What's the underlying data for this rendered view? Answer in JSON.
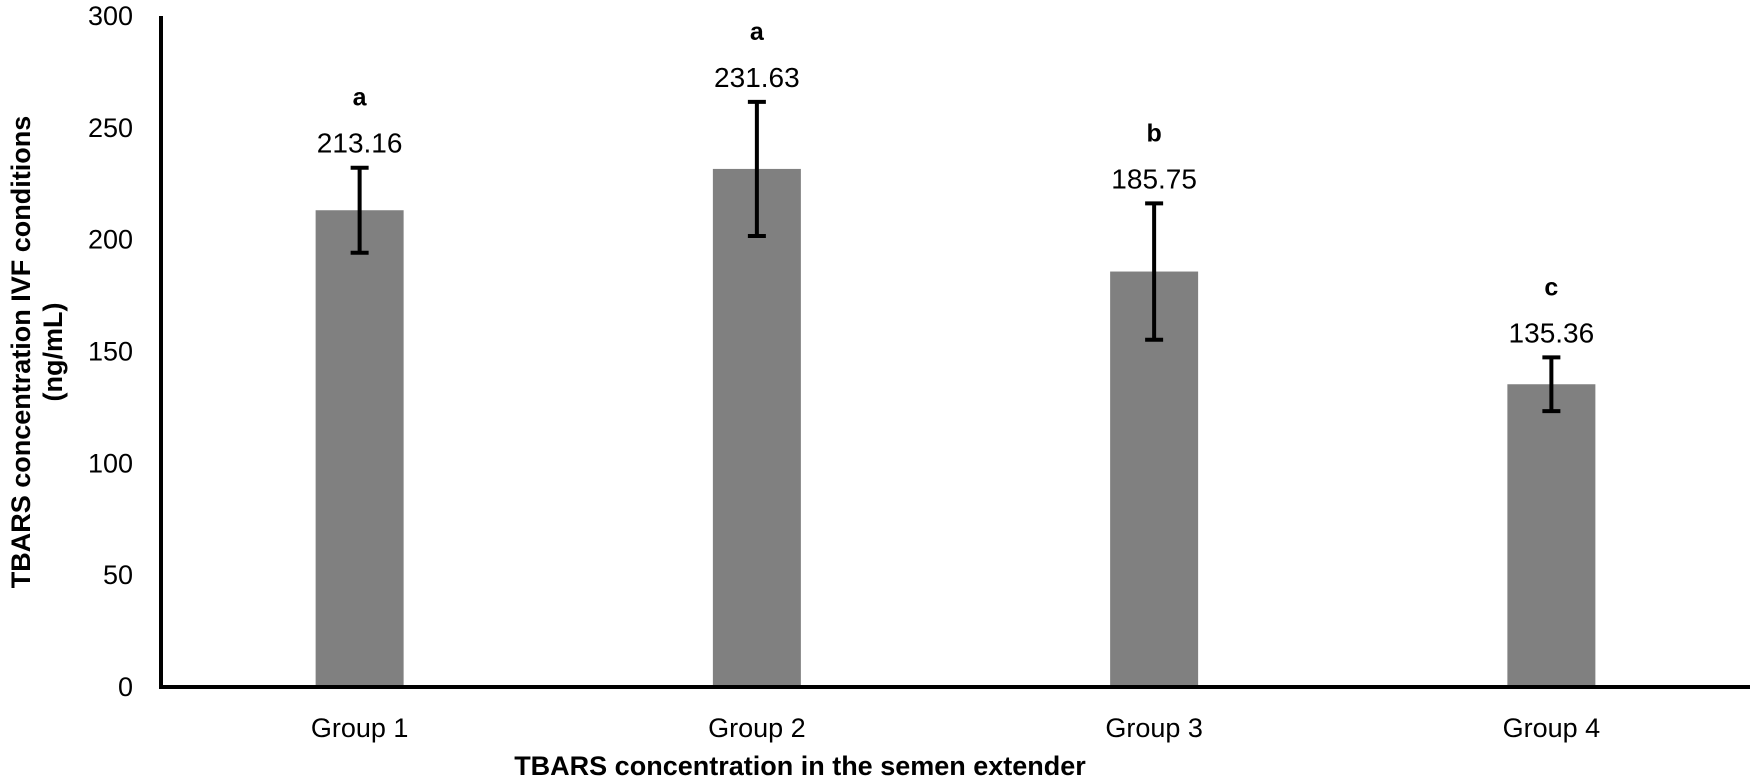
{
  "chart_data": {
    "type": "bar",
    "title": "",
    "xlabel": "TBARS concentration in the semen extender",
    "ylabel_lines": [
      "TBARS concentration IVF conditions",
      "(ng/mL)"
    ],
    "ylabel": "TBARS concentration IVF conditions (ng/mL)",
    "categories": [
      "Group 1",
      "Group 2",
      "Group 3",
      "Group 4"
    ],
    "values": [
      213.16,
      231.63,
      185.75,
      135.36
    ],
    "value_labels": [
      "213.16",
      "231.63",
      "185.75",
      "135.36"
    ],
    "error": [
      19,
      30,
      30.5,
      12
    ],
    "significance_letters": [
      "a",
      "a",
      "b",
      "c"
    ],
    "ylim": [
      0,
      300
    ],
    "yticks": [
      0,
      50,
      100,
      150,
      200,
      250,
      300
    ],
    "ytick_labels": [
      "0",
      "50",
      "100",
      "150",
      "200",
      "250",
      "300"
    ],
    "grid": false,
    "legend": null,
    "bar_color": "#808080",
    "axis_color": "#000000"
  }
}
